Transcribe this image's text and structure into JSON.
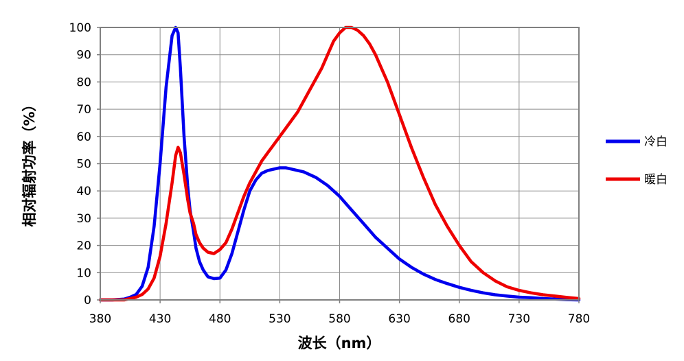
{
  "chart_data": {
    "type": "line",
    "title": "",
    "xlabel": "波长（nm）",
    "ylabel": "相对辐射功率（%）",
    "xlim": [
      380,
      780
    ],
    "ylim": [
      0,
      100
    ],
    "xticks": [
      380,
      430,
      480,
      530,
      580,
      630,
      680,
      730,
      780
    ],
    "yticks": [
      0,
      10,
      20,
      30,
      40,
      50,
      60,
      70,
      80,
      90,
      100
    ],
    "grid": true,
    "legend_position": "right",
    "series": [
      {
        "name": "冷白",
        "color": "#0000ee",
        "x": [
          380,
          390,
          400,
          405,
          410,
          415,
          420,
          425,
          430,
          435,
          440,
          443,
          445,
          447,
          450,
          453,
          455,
          458,
          460,
          463,
          466,
          470,
          475,
          480,
          485,
          490,
          495,
          500,
          505,
          510,
          515,
          520,
          525,
          530,
          535,
          540,
          545,
          550,
          555,
          560,
          570,
          580,
          590,
          600,
          610,
          620,
          630,
          640,
          650,
          660,
          670,
          680,
          690,
          700,
          710,
          720,
          730,
          740,
          750,
          760,
          770,
          780
        ],
        "y": [
          0,
          0,
          0.3,
          1,
          2,
          5,
          12,
          27,
          50,
          78,
          97,
          100,
          98,
          85,
          60,
          42,
          33,
          25,
          19,
          14,
          11,
          8.5,
          7.8,
          8,
          11,
          17,
          25,
          33,
          40,
          44,
          46.5,
          47.5,
          48,
          48.5,
          48.5,
          48,
          47.5,
          47,
          46,
          45,
          42,
          38,
          33,
          28,
          23,
          19,
          15,
          12,
          9.5,
          7.5,
          6,
          4.6,
          3.5,
          2.6,
          1.9,
          1.4,
          1.0,
          0.8,
          0.5,
          0.3,
          0.1,
          0
        ]
      },
      {
        "name": "暖白",
        "color": "#ee0000",
        "x": [
          380,
          390,
          400,
          405,
          410,
          415,
          420,
          425,
          430,
          435,
          440,
          443,
          445,
          447,
          450,
          453,
          455,
          458,
          460,
          463,
          466,
          470,
          475,
          480,
          485,
          490,
          495,
          500,
          505,
          510,
          515,
          520,
          525,
          530,
          535,
          540,
          545,
          550,
          555,
          560,
          565,
          570,
          575,
          580,
          585,
          590,
          595,
          600,
          605,
          610,
          615,
          620,
          625,
          630,
          640,
          650,
          660,
          670,
          680,
          690,
          700,
          710,
          720,
          730,
          740,
          750,
          760,
          770,
          780
        ],
        "y": [
          0,
          0,
          0,
          0.5,
          1,
          2,
          4,
          8,
          16,
          28,
          43,
          53,
          56,
          54,
          46,
          37,
          32,
          28,
          24,
          21,
          19,
          17.5,
          17,
          18.5,
          21,
          26,
          32,
          38,
          43,
          47,
          51,
          54,
          57,
          60,
          63,
          66,
          69,
          73,
          77,
          81,
          85,
          90,
          95,
          98,
          100,
          100,
          99,
          97,
          94,
          90,
          85,
          80,
          74,
          68,
          56,
          45,
          35,
          27,
          20,
          14,
          10,
          7,
          4.8,
          3.5,
          2.6,
          1.9,
          1.4,
          0.9,
          0.5
        ]
      }
    ]
  }
}
